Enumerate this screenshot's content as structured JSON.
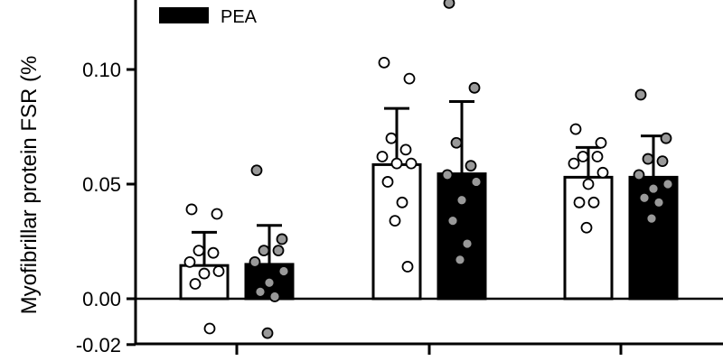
{
  "chart_data": {
    "type": "bar",
    "ylabel": "Myofibrillar protein FSR (%",
    "ylim": [
      -0.02,
      0.13
    ],
    "yticks": [
      -0.02,
      0.0,
      0.05,
      0.1
    ],
    "ytick_labels": [
      "-0.02",
      "0.00",
      "0.05",
      "0.10"
    ],
    "legend_position": "top-left",
    "categories": [
      "",
      "",
      ""
    ],
    "series": [
      {
        "name": "",
        "fill": "#ffffff",
        "values": [
          0.0145,
          0.0585,
          0.053
        ],
        "sd": [
          0.0145,
          0.0245,
          0.013
        ],
        "points": [
          [
            0.039,
            0.037,
            0.021,
            0.02,
            0.016,
            0.012,
            0.011,
            0.0065,
            -0.013
          ],
          [
            0.103,
            0.096,
            0.07,
            0.065,
            0.062,
            0.059,
            0.059,
            0.051,
            0.042,
            0.034,
            0.014
          ],
          [
            0.074,
            0.068,
            0.062,
            0.062,
            0.059,
            0.055,
            0.05,
            0.042,
            0.042,
            0.031
          ]
        ]
      },
      {
        "name": "PEA",
        "fill": "#000000",
        "values": [
          0.015,
          0.0545,
          0.053
        ],
        "sd": [
          0.017,
          0.0315,
          0.018
        ],
        "points": [
          [
            0.056,
            0.026,
            0.021,
            0.021,
            0.016,
            0.012,
            0.007,
            0.003,
            0.001,
            -0.015
          ],
          [
            0.129,
            0.092,
            0.068,
            0.058,
            0.054,
            0.051,
            0.043,
            0.034,
            0.024,
            0.017
          ],
          [
            0.089,
            0.07,
            0.061,
            0.06,
            0.054,
            0.05,
            0.048,
            0.044,
            0.042,
            0.035
          ]
        ]
      }
    ],
    "marker_fill": [
      "#ffffff",
      "#999999"
    ],
    "grid": false
  }
}
